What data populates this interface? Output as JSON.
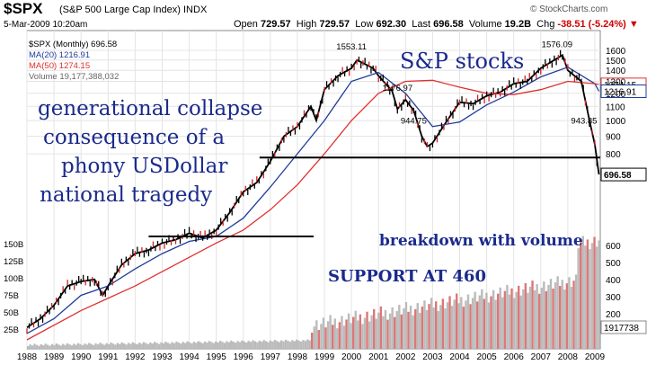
{
  "header": {
    "symbol": "$SPX",
    "index_name": "(S&P 500 Large Cap Index) INDX",
    "date": "5-Mar-2009 10:20am",
    "brand": "© StockCharts.com",
    "open_label": "Open",
    "open": "729.57",
    "high_label": "High",
    "high": "729.57",
    "low_label": "Low",
    "low": "692.30",
    "last_label": "Last",
    "last": "696.58",
    "volume_label": "Volume",
    "volume": "19.2B",
    "chg_label": "Chg",
    "chg": "-38.51 (-5.24%)",
    "chg_arrow": "▼"
  },
  "legend": {
    "price": "$SPX (Monthly) 696.58",
    "ma20": "MA(20) 1216.91",
    "ma50": "MA(50) 1274.15",
    "volume": "Volume 19,177,388,032"
  },
  "annotations": {
    "title": "S&P stocks",
    "line1": "generational collapse",
    "line2": "consequence of a",
    "line3": "phony USDollar",
    "line4": "national tragedy",
    "breakdown": "breakdown with volume",
    "support": "SUPPORT AT 460"
  },
  "chart_data": {
    "type": "line",
    "title": "$SPX (S&P 500 Large Cap Index) INDX",
    "x_range": [
      1988,
      2009.2
    ],
    "x_ticks": [
      "1988",
      "1989",
      "1990",
      "1991",
      "1992",
      "1993",
      "1994",
      "1995",
      "1996",
      "1997",
      "1998",
      "1999",
      "2000",
      "2001",
      "2002",
      "2003",
      "2004",
      "2005",
      "2006",
      "2007",
      "2008",
      "2009"
    ],
    "y_scale": "log",
    "y_range": [
      230,
      1700
    ],
    "y_ticks": [
      "800",
      "900",
      "1000",
      "1100",
      "1200",
      "1300",
      "1400",
      "1500",
      "1600"
    ],
    "volume_ticks": [
      "25B",
      "50B",
      "75B",
      "100B",
      "125B",
      "150B"
    ],
    "volume_ticks_right": [
      "200",
      "300",
      "400",
      "500",
      "600"
    ],
    "series": [
      {
        "name": "$SPX (Monthly)",
        "color": "#000000",
        "x": [
          1988,
          1988.5,
          1989,
          1989.5,
          1990,
          1990.5,
          1990.8,
          1991,
          1991.5,
          1992,
          1992.5,
          1993,
          1993.5,
          1994,
          1994.5,
          1995,
          1995.5,
          1996,
          1996.5,
          1997,
          1997.5,
          1998,
          1998.5,
          1998.7,
          1999,
          1999.5,
          2000,
          2000.2,
          2000.5,
          2000.8,
          2001,
          2001.5,
          2001.7,
          2002,
          2002.3,
          2002.6,
          2002.8,
          2003,
          2003.5,
          2004,
          2004.5,
          2005,
          2005.5,
          2006,
          2006.5,
          2007,
          2007.5,
          2007.8,
          2008,
          2008.5,
          2008.8,
          2009,
          2009.15
        ],
        "values": [
          250,
          265,
          290,
          330,
          340,
          345,
          310,
          330,
          380,
          410,
          420,
          440,
          450,
          470,
          455,
          480,
          540,
          620,
          660,
          760,
          900,
          960,
          1100,
          1000,
          1230,
          1350,
          1420,
          1500,
          1460,
          1420,
          1350,
          1220,
          1080,
          1150,
          1070,
          900,
          840,
          860,
          990,
          1130,
          1120,
          1180,
          1210,
          1280,
          1300,
          1420,
          1500,
          1550,
          1400,
          1300,
          1000,
          850,
          697
        ]
      },
      {
        "name": "MA(20)",
        "color": "#1f3c99",
        "x": [
          1988,
          1989,
          1990,
          1991,
          1992,
          1993,
          1994,
          1995,
          1996,
          1997,
          1998,
          1999,
          2000,
          2001,
          2002,
          2003,
          2004,
          2005,
          2006,
          2007,
          2008,
          2009,
          2009.15
        ],
        "values": [
          240,
          265,
          310,
          330,
          370,
          410,
          445,
          460,
          520,
          640,
          800,
          1000,
          1300,
          1380,
          1200,
          960,
          990,
          1110,
          1210,
          1340,
          1430,
          1280,
          1217
        ]
      },
      {
        "name": "MA(50)",
        "color": "#e03030",
        "x": [
          1988,
          1990,
          1992,
          1994,
          1995,
          1996,
          1997,
          1998,
          1999,
          2000,
          2001,
          2002,
          2003,
          2004,
          2005,
          2006,
          2007,
          2008,
          2009,
          2009.15
        ],
        "values": [
          230,
          280,
          330,
          400,
          440,
          480,
          550,
          650,
          800,
          1000,
          1200,
          1300,
          1310,
          1250,
          1200,
          1190,
          1230,
          1300,
          1280,
          1274
        ]
      }
    ],
    "labels": [
      {
        "x": 2000.0,
        "y": 1553.11,
        "text": "1553.11"
      },
      {
        "x": 2007.6,
        "y": 1576.09,
        "text": "1576.09"
      },
      {
        "x": 2001.7,
        "y": 1176.97,
        "text": "1176.97"
      },
      {
        "x": 2002.3,
        "y": 944.75,
        "text": "944.75"
      },
      {
        "x": 2008.6,
        "y": 943.85,
        "text": "943.85"
      }
    ],
    "right_labels": [
      {
        "value": 1274.15,
        "text": "1274.15",
        "color": "#e03030"
      },
      {
        "value": 1216.91,
        "text": "1216.91",
        "color": "#1f3c99"
      },
      {
        "value": 696.58,
        "text": "696.58",
        "color": "#000000"
      }
    ],
    "right_volume_label": "1917738",
    "support_level": 460,
    "breakdown_level": 780
  }
}
